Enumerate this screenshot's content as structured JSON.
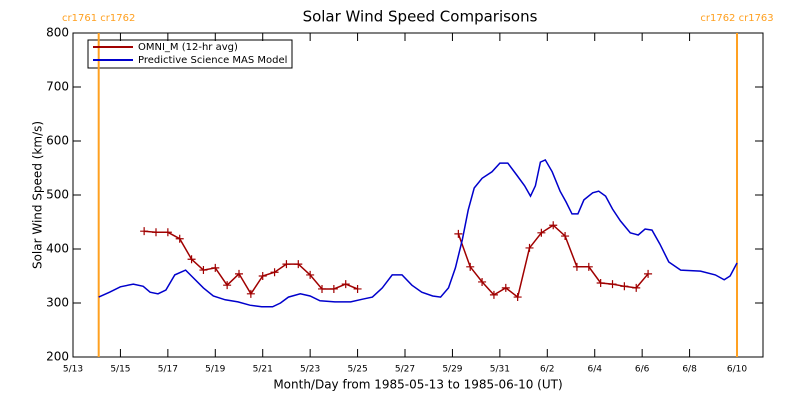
{
  "chart_data": {
    "type": "line",
    "title": "Solar Wind Speed Comparisons",
    "xlabel": "Month/Day from 1985-05-13 to 1985-06-10 (UT)",
    "ylabel": "Solar Wind Speed (km/s)",
    "xlim": [
      "1985-05-13T00:00",
      "1985-06-11T02:18"
    ],
    "ylim": [
      200,
      800
    ],
    "yticks": [
      200,
      300,
      400,
      500,
      600,
      700,
      800
    ],
    "xticks": [
      {
        "value": "1985-05-13T00:00",
        "label": "5/13"
      },
      {
        "value": "1985-05-15T00:00",
        "label": "5/15"
      },
      {
        "value": "1985-05-17T00:00",
        "label": "5/17"
      },
      {
        "value": "1985-05-19T00:00",
        "label": "5/19"
      },
      {
        "value": "1985-05-21T00:00",
        "label": "5/21"
      },
      {
        "value": "1985-05-23T00:00",
        "label": "5/23"
      },
      {
        "value": "1985-05-25T00:00",
        "label": "5/25"
      },
      {
        "value": "1985-05-27T00:00",
        "label": "5/27"
      },
      {
        "value": "1985-05-29T00:00",
        "label": "5/29"
      },
      {
        "value": "1985-05-31T00:00",
        "label": "5/31"
      },
      {
        "value": "1985-06-02T00:00",
        "label": "6/2"
      },
      {
        "value": "1985-06-04T00:00",
        "label": "6/4"
      },
      {
        "value": "1985-06-06T00:00",
        "label": "6/6"
      },
      {
        "value": "1985-06-08T00:00",
        "label": "6/8"
      },
      {
        "value": "1985-06-10T00:00",
        "label": "6/10"
      }
    ],
    "annotations": [
      {
        "text": "cr1761 cr1762",
        "x": "1985-05-14T02:00",
        "color": "#ffa020"
      },
      {
        "text": "cr1762 cr1763",
        "x": "1985-06-10T00:00",
        "color": "#ffa020"
      }
    ],
    "series": [
      {
        "name": "OMNI_M (12-hr avg)",
        "color": "#a00000",
        "marker": "+",
        "x": [
          "1985-05-16T00:00",
          "1985-05-16T12:00",
          "1985-05-17T00:00",
          "1985-05-17T12:00",
          "1985-05-18T00:00",
          "1985-05-18T12:00",
          "1985-05-19T00:00",
          "1985-05-19T12:00",
          "1985-05-20T00:00",
          "1985-05-20T12:00",
          "1985-05-21T00:00",
          "1985-05-21T12:00",
          "1985-05-22T00:00",
          "1985-05-22T12:00",
          "1985-05-23T00:00",
          "1985-05-23T12:00",
          "1985-05-24T00:00",
          "1985-05-24T12:00",
          "1985-05-25T00:00",
          "1985-05-27T00:00",
          "1985-05-29T06:00",
          "1985-05-29T18:00",
          "1985-05-30T06:00",
          "1985-05-30T18:00",
          "1985-05-31T06:00",
          "1985-05-31T18:00",
          "1985-06-01T06:00",
          "1985-06-01T18:00",
          "1985-06-02T06:00",
          "1985-06-02T18:00",
          "1985-06-03T06:00",
          "1985-06-03T18:00",
          "1985-06-04T06:00",
          "1985-06-04T18:00",
          "1985-06-05T06:00",
          "1985-06-05T18:00",
          "1985-06-06T06:00"
        ],
        "values": [
          433,
          431,
          431,
          419,
          381,
          361,
          365,
          333,
          354,
          317,
          350,
          357,
          372,
          372,
          352,
          326,
          326,
          335,
          326,
          null,
          428,
          367,
          339,
          315,
          328,
          311,
          402,
          430,
          444,
          424,
          367,
          367,
          337,
          335,
          331,
          328,
          354
        ]
      },
      {
        "name": "Predictive Science MAS Model",
        "color": "#0000cc",
        "x": [
          "1985-05-14T02:00",
          "1985-05-14T13:00",
          "1985-05-15T00:00",
          "1985-05-15T13:00",
          "1985-05-15T23:00",
          "1985-05-16T06:00",
          "1985-05-16T14:00",
          "1985-05-16T22:00",
          "1985-05-17T07:00",
          "1985-05-17T18:00",
          "1985-05-18T01:00",
          "1985-05-18T12:00",
          "1985-05-18T22:00",
          "1985-05-19T10:00",
          "1985-05-19T23:00",
          "1985-05-20T11:00",
          "1985-05-20T23:00",
          "1985-05-21T10:00",
          "1985-05-21T18:00",
          "1985-05-22T02:00",
          "1985-05-22T14:00",
          "1985-05-23T00:00",
          "1985-05-23T10:00",
          "1985-05-24T01:00",
          "1985-05-24T17:00",
          "1985-05-25T05:00",
          "1985-05-25T15:00",
          "1985-05-26T01:00",
          "1985-05-26T11:00",
          "1985-05-26T21:00",
          "1985-05-27T07:00",
          "1985-05-27T17:00",
          "1985-05-28T04:00",
          "1985-05-28T12:00",
          "1985-05-28T20:00",
          "1985-05-29T03:00",
          "1985-05-29T10:00",
          "1985-05-29T16:00",
          "1985-05-29T22:00",
          "1985-05-30T06:00",
          "1985-05-30T16:00",
          "1985-05-31T00:00",
          "1985-05-31T08:00",
          "1985-05-31T17:00",
          "1985-06-01T01:00",
          "1985-06-01T07:00",
          "1985-06-01T12:00",
          "1985-06-01T17:00",
          "1985-06-01T22:00",
          "1985-06-02T05:00",
          "1985-06-02T13:00",
          "1985-06-02T19:00",
          "1985-06-03T01:00",
          "1985-06-03T07:00",
          "1985-06-03T13:00",
          "1985-06-03T22:00",
          "1985-06-04T04:00",
          "1985-06-04T11:00",
          "1985-06-04T18:00",
          "1985-06-05T02:00",
          "1985-06-05T12:00",
          "1985-06-05T20:00",
          "1985-06-06T03:00",
          "1985-06-06T10:00",
          "1985-06-06T18:00",
          "1985-06-07T03:00",
          "1985-06-07T15:00",
          "1985-06-08T11:00",
          "1985-06-09T02:00",
          "1985-06-09T11:00",
          "1985-06-09T17:00",
          "1985-06-10T00:00"
        ],
        "values": [
          311,
          320,
          330,
          335,
          331,
          320,
          317,
          324,
          352,
          361,
          348,
          328,
          313,
          306,
          302,
          296,
          293,
          293,
          300,
          311,
          317,
          313,
          304,
          302,
          302,
          307,
          311,
          328,
          352,
          352,
          333,
          320,
          313,
          311,
          328,
          365,
          417,
          472,
          513,
          531,
          543,
          559,
          559,
          537,
          517,
          498,
          517,
          561,
          565,
          543,
          507,
          487,
          465,
          465,
          491,
          504,
          507,
          498,
          474,
          452,
          430,
          426,
          437,
          435,
          409,
          376,
          361,
          359,
          352,
          343,
          350,
          374
        ]
      }
    ]
  }
}
